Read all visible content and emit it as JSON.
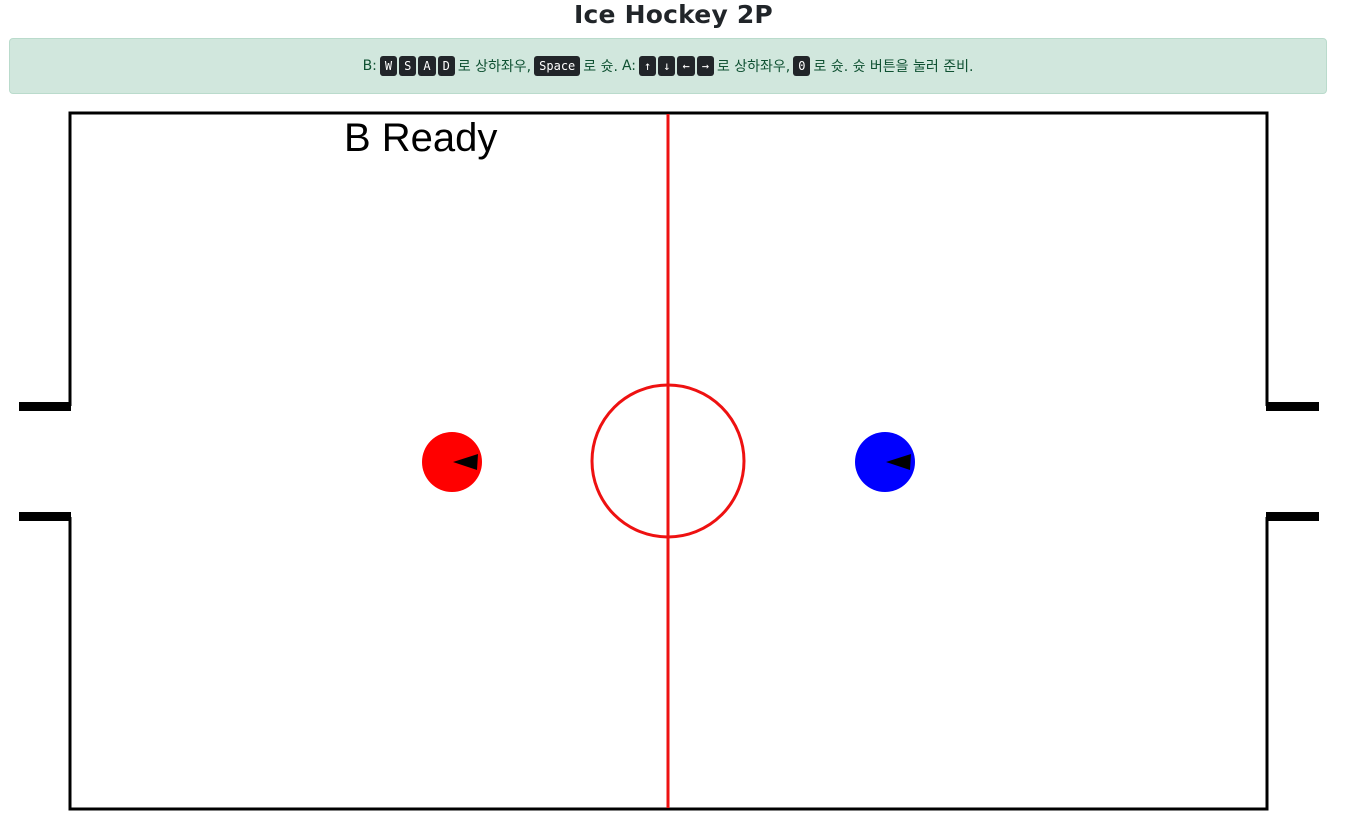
{
  "page": {
    "title": "Ice Hockey 2P"
  },
  "instructions": {
    "player_b_prefix": "B:",
    "player_b_keys": [
      "W",
      "S",
      "A",
      "D"
    ],
    "move_text_b": "로 상하좌우,",
    "shoot_key_b": "Space",
    "shoot_text_b": "로 슛.",
    "player_a_prefix": "A:",
    "player_a_keys": [
      "↑",
      "↓",
      "←",
      "→"
    ],
    "move_text_a": "로 상하좌우,",
    "shoot_key_a": "0",
    "shoot_text_a": "로 슛. 슛 버튼을 눌러 준비."
  },
  "game": {
    "status_text": "B Ready",
    "colors": {
      "player_b": "#ff0000",
      "player_a": "#0000ff",
      "center_line": "#ee1111",
      "rink_border": "#000000"
    }
  }
}
